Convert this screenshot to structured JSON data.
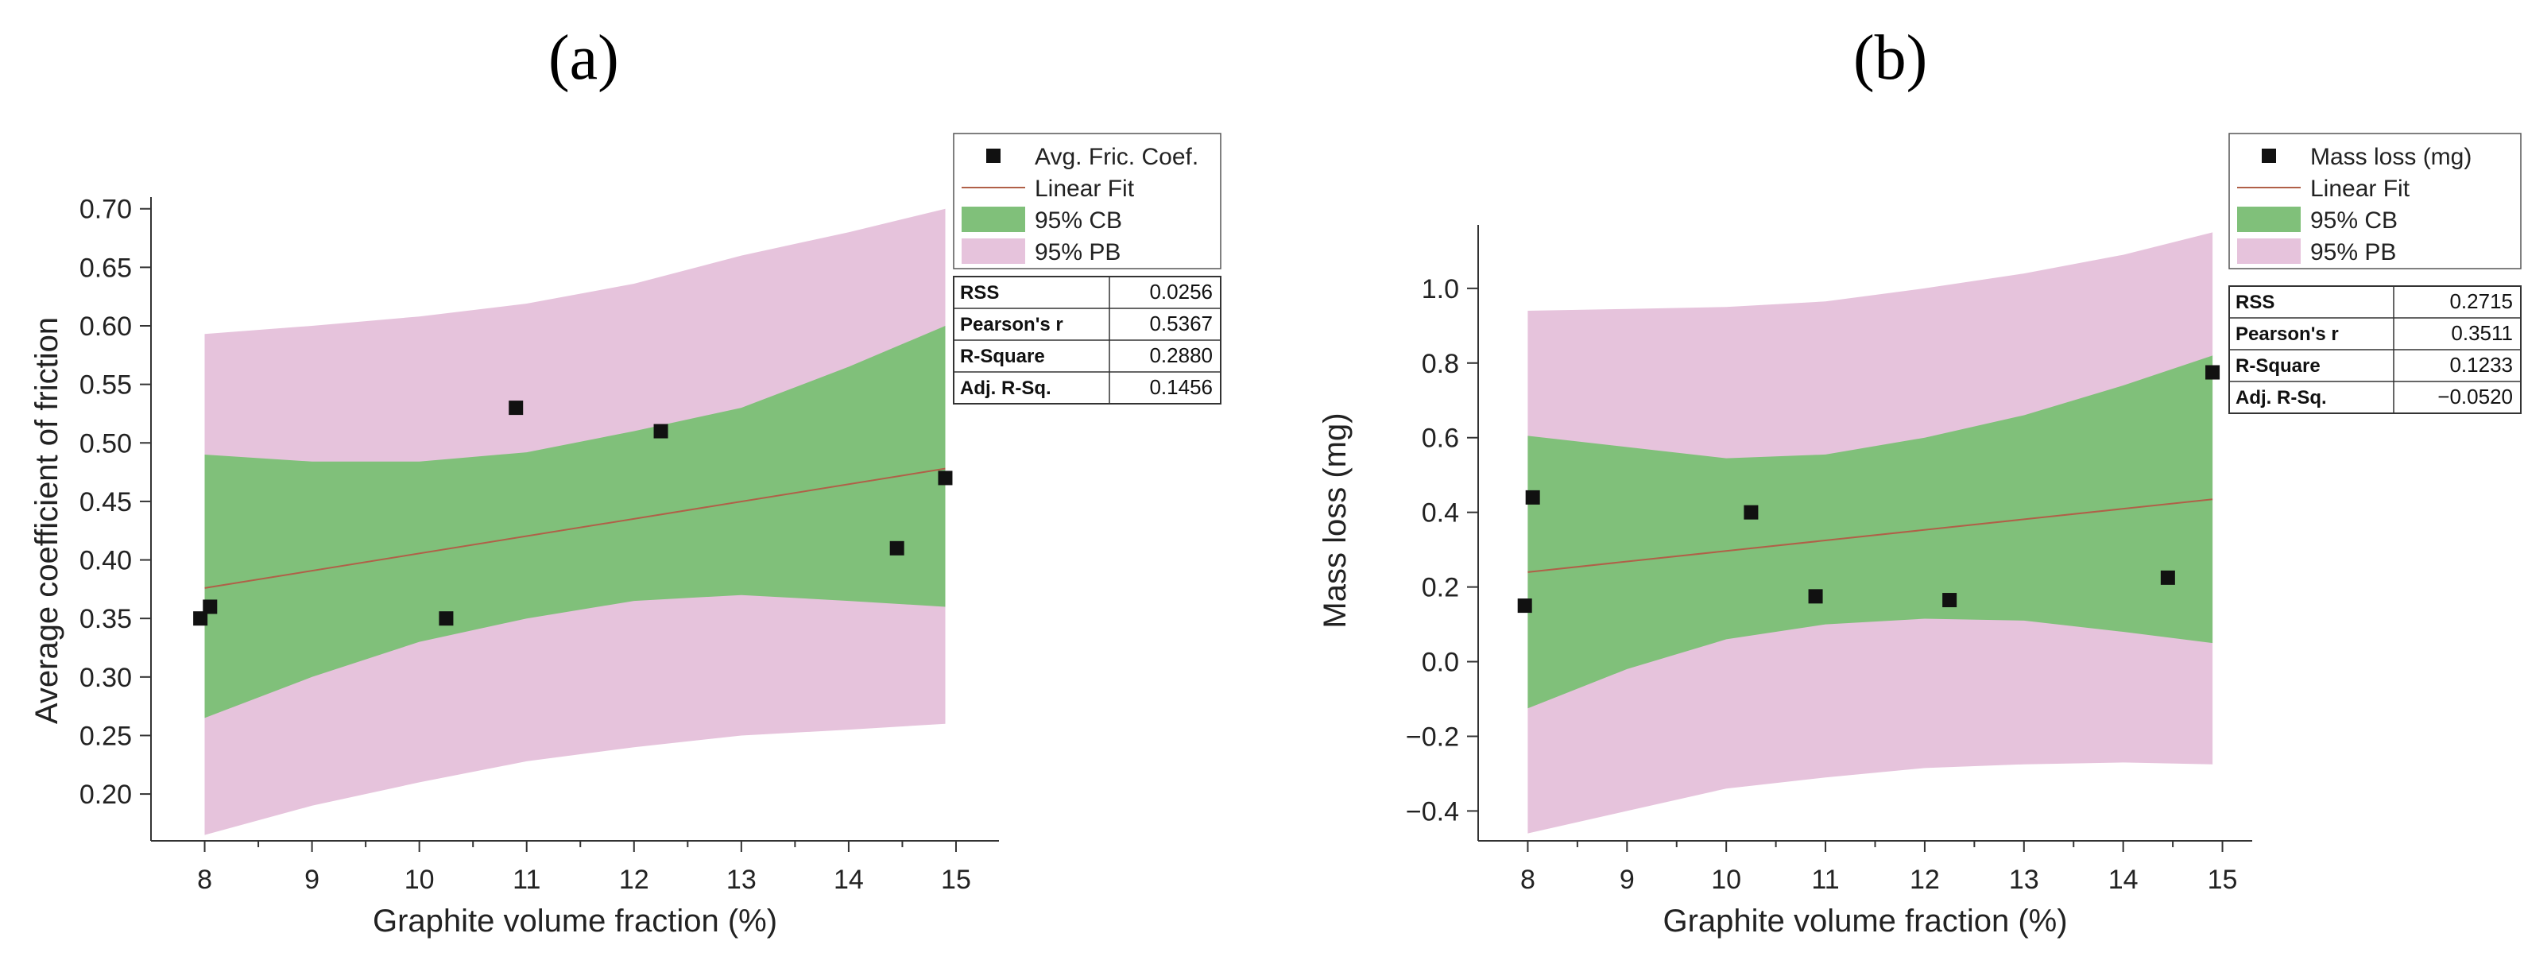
{
  "chart_data": [
    {
      "type": "scatter",
      "panel_label": "(a)",
      "xlabel": "Graphite volume fraction (%)",
      "ylabel": "Average coefficient of friction",
      "xlim": [
        7.5,
        15.4
      ],
      "ylim": [
        0.16,
        0.71
      ],
      "xticks": [
        8,
        9,
        10,
        11,
        12,
        13,
        14,
        15
      ],
      "yticks": [
        0.2,
        0.25,
        0.3,
        0.35,
        0.4,
        0.45,
        0.5,
        0.55,
        0.6,
        0.65,
        0.7
      ],
      "ytick_decimals": 2,
      "points": [
        {
          "x": 7.96,
          "y": 0.35
        },
        {
          "x": 8.05,
          "y": 0.36
        },
        {
          "x": 10.25,
          "y": 0.35
        },
        {
          "x": 10.9,
          "y": 0.53
        },
        {
          "x": 12.25,
          "y": 0.51
        },
        {
          "x": 14.45,
          "y": 0.41
        },
        {
          "x": 14.9,
          "y": 0.47
        }
      ],
      "fit": {
        "x": [
          8,
          14.9
        ],
        "y": [
          0.376,
          0.478
        ]
      },
      "confidence_band": {
        "x": [
          8,
          9,
          10,
          11,
          12,
          13,
          14,
          14.9
        ],
        "upper": [
          0.49,
          0.484,
          0.484,
          0.492,
          0.51,
          0.53,
          0.565,
          0.6
        ],
        "lower": [
          0.265,
          0.3,
          0.33,
          0.35,
          0.365,
          0.37,
          0.365,
          0.36
        ]
      },
      "prediction_band": {
        "x": [
          8,
          9,
          10,
          11,
          12,
          13,
          14,
          14.9
        ],
        "upper": [
          0.593,
          0.6,
          0.608,
          0.619,
          0.636,
          0.66,
          0.68,
          0.7
        ],
        "lower": [
          0.165,
          0.19,
          0.21,
          0.228,
          0.24,
          0.25,
          0.255,
          0.26
        ]
      },
      "legend": {
        "points": "Avg. Fric. Coef.",
        "fit": "Linear Fit",
        "cb": "95% CB",
        "pb": "95% PB"
      },
      "stats": [
        {
          "label": "RSS",
          "value": "0.0256"
        },
        {
          "label": "Pearson's r",
          "value": "0.5367"
        },
        {
          "label": "R-Square",
          "value": "0.2880"
        },
        {
          "label": "Adj. R-Sq.",
          "value": "0.1456"
        }
      ]
    },
    {
      "type": "scatter",
      "panel_label": "(b)",
      "xlabel": "Graphite volume fraction (%)",
      "ylabel": "Mass loss (mg)",
      "xlim": [
        7.5,
        15.3
      ],
      "ylim": [
        -0.48,
        1.17
      ],
      "xticks": [
        8,
        9,
        10,
        11,
        12,
        13,
        14,
        15
      ],
      "yticks": [
        -0.4,
        -0.2,
        0.0,
        0.2,
        0.4,
        0.6,
        0.8,
        1.0
      ],
      "ytick_decimals": 1,
      "points": [
        {
          "x": 7.97,
          "y": 0.15
        },
        {
          "x": 8.05,
          "y": 0.44
        },
        {
          "x": 10.25,
          "y": 0.4
        },
        {
          "x": 10.9,
          "y": 0.175
        },
        {
          "x": 12.25,
          "y": 0.165
        },
        {
          "x": 14.45,
          "y": 0.225
        },
        {
          "x": 14.9,
          "y": 0.775
        }
      ],
      "fit": {
        "x": [
          8,
          14.9
        ],
        "y": [
          0.24,
          0.435
        ]
      },
      "confidence_band": {
        "x": [
          8,
          9,
          10,
          11,
          12,
          13,
          14,
          14.9
        ],
        "upper": [
          0.605,
          0.575,
          0.545,
          0.555,
          0.6,
          0.66,
          0.74,
          0.82
        ],
        "lower": [
          -0.125,
          -0.02,
          0.06,
          0.1,
          0.115,
          0.11,
          0.08,
          0.05
        ]
      },
      "prediction_band": {
        "x": [
          8,
          9,
          10,
          11,
          12,
          13,
          14,
          14.9
        ],
        "upper": [
          0.94,
          0.945,
          0.95,
          0.965,
          1.0,
          1.04,
          1.09,
          1.15
        ],
        "lower": [
          -0.46,
          -0.4,
          -0.34,
          -0.31,
          -0.285,
          -0.275,
          -0.27,
          -0.275
        ]
      },
      "legend": {
        "points": "Mass loss (mg)",
        "fit": "Linear Fit",
        "cb": "95% CB",
        "pb": "95% PB"
      },
      "stats": [
        {
          "label": "RSS",
          "value": "0.2715"
        },
        {
          "label": "Pearson's r",
          "value": "0.3511"
        },
        {
          "label": "R-Square",
          "value": "0.1233"
        },
        {
          "label": "Adj. R-Sq.",
          "value": "−0.0520"
        }
      ]
    }
  ],
  "colors": {
    "pb": "#e6c3dc",
    "cb": "#80c07a",
    "fit": "#b06048",
    "point": "#111111",
    "axis": "#333333"
  }
}
